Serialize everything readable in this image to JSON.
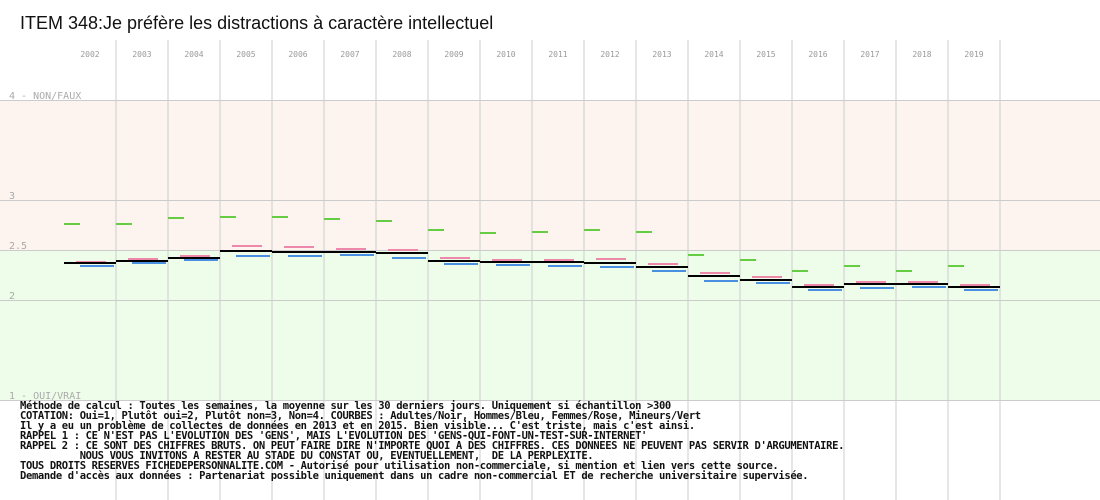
{
  "chart_data": {
    "type": "line",
    "title": "ITEM 348:Je préfère les distractions à caractère intellectuel",
    "categories": [
      "2002",
      "2003",
      "2004",
      "2005",
      "2006",
      "2007",
      "2008",
      "2009",
      "2010",
      "2011",
      "2012",
      "2013",
      "2014",
      "2015",
      "2016",
      "2017",
      "2018",
      "2019"
    ],
    "y_tick_labels": [
      {
        "value": 4,
        "label": "4 - NON/FAUX"
      },
      {
        "value": 3,
        "label": "3"
      },
      {
        "value": 2.5,
        "label": "2.5"
      },
      {
        "value": 2,
        "label": "2"
      },
      {
        "value": 1,
        "label": "1 - OUI/VRAI"
      }
    ],
    "ylim": [
      1,
      4
    ],
    "grid": true,
    "bands": [
      {
        "from": 2.5,
        "to": 4,
        "color": "#fdf3ef"
      },
      {
        "from": 1,
        "to": 2.5,
        "color": "#eefdea"
      }
    ],
    "series": [
      {
        "name": "Adultes",
        "color": "#000000",
        "values": [
          2.37,
          2.39,
          2.42,
          2.49,
          2.48,
          2.48,
          2.47,
          2.39,
          2.38,
          2.38,
          2.37,
          2.33,
          2.24,
          2.2,
          2.13,
          2.16,
          2.16,
          2.13
        ]
      },
      {
        "name": "Hommes",
        "color": "#4a90e2",
        "values": [
          2.34,
          2.37,
          2.4,
          2.44,
          2.44,
          2.45,
          2.42,
          2.36,
          2.35,
          2.34,
          2.33,
          2.29,
          2.19,
          2.17,
          2.1,
          2.12,
          2.13,
          2.1
        ]
      },
      {
        "name": "Femmes",
        "color": "#ee88aa",
        "values": [
          2.38,
          2.41,
          2.44,
          2.54,
          2.53,
          2.51,
          2.5,
          2.42,
          2.4,
          2.4,
          2.41,
          2.36,
          2.27,
          2.23,
          2.15,
          2.18,
          2.18,
          2.15
        ]
      },
      {
        "name": "Mineurs",
        "color": "#66cc44",
        "values": [
          2.76,
          2.76,
          2.82,
          2.83,
          2.83,
          2.81,
          2.79,
          2.7,
          2.67,
          2.68,
          2.7,
          2.68,
          2.45,
          2.4,
          2.29,
          2.34,
          2.29,
          2.34
        ]
      }
    ]
  },
  "notes": [
    "Méthode de calcul : Toutes les semaines, la moyenne sur les 30 derniers jours. Uniquement si échantillon >300",
    "COTATION: Oui=1, Plutôt oui=2, Plutôt non=3, Non=4. COURBES : Adultes/Noir, Hommes/Bleu, Femmes/Rose, Mineurs/Vert",
    "Il y a eu un problème de collectes de données en 2013 et en 2015. Bien visible... C'est triste, mais c'est ainsi.",
    "RAPPEL 1 : CE N'EST PAS L'EVOLUTION DES 'GENS', MAIS L'EVOLUTION DES 'GENS-QUI-FONT-UN-TEST-SUR-INTERNET'",
    "RAPPEL 2 : CE SONT DES CHIFFRES BRUTS. ON PEUT FAIRE DIRE N'IMPORTE QUOI A DES CHIFFRES. CES DONNEES NE PEUVENT PAS SERVIR D'ARGUMENTAIRE.",
    "          NOUS VOUS INVITONS A RESTER AU STADE DU CONSTAT OU, EVENTUELLEMENT,  DE LA PERPLEXITE.",
    "TOUS DROITS RESERVES FICHEDEPERSONNALITE.COM - Autorisé pour utilisation non-commerciale, si mention et lien vers cette source.",
    "Demande d'accès aux données : Partenariat possible uniquement dans un cadre non-commercial ET de recherche universitaire supervisée."
  ]
}
